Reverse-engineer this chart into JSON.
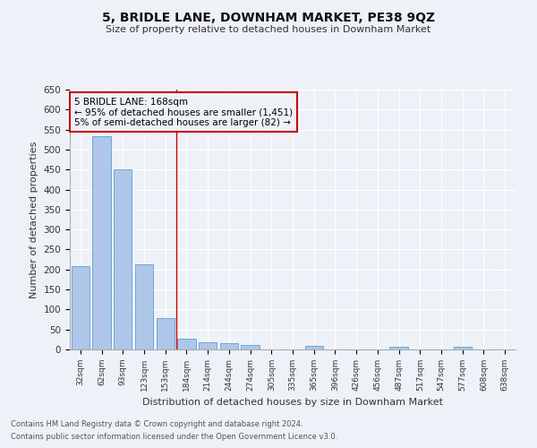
{
  "title1": "5, BRIDLE LANE, DOWNHAM MARKET, PE38 9QZ",
  "title2": "Size of property relative to detached houses in Downham Market",
  "xlabel": "Distribution of detached houses by size in Downham Market",
  "ylabel": "Number of detached properties",
  "categories": [
    "32sqm",
    "62sqm",
    "93sqm",
    "123sqm",
    "153sqm",
    "184sqm",
    "214sqm",
    "244sqm",
    "274sqm",
    "305sqm",
    "335sqm",
    "365sqm",
    "396sqm",
    "426sqm",
    "456sqm",
    "487sqm",
    "517sqm",
    "547sqm",
    "577sqm",
    "608sqm",
    "638sqm"
  ],
  "values": [
    208,
    533,
    450,
    212,
    78,
    26,
    18,
    15,
    12,
    0,
    0,
    8,
    0,
    0,
    0,
    6,
    0,
    0,
    6,
    0,
    0
  ],
  "bar_color": "#aec6e8",
  "bar_edge_color": "#5a9fd4",
  "vline_x_index": 5,
  "vline_color": "#cc0000",
  "annotation_text": "5 BRIDLE LANE: 168sqm\n← 95% of detached houses are smaller (1,451)\n5% of semi-detached houses are larger (82) →",
  "annotation_box_color": "#cc0000",
  "annotation_text_color": "#000000",
  "ylim": [
    0,
    650
  ],
  "yticks": [
    0,
    50,
    100,
    150,
    200,
    250,
    300,
    350,
    400,
    450,
    500,
    550,
    600,
    650
  ],
  "footnote1": "Contains HM Land Registry data © Crown copyright and database right 2024.",
  "footnote2": "Contains public sector information licensed under the Open Government Licence v3.0.",
  "background_color": "#eef2f8",
  "grid_color": "#ffffff"
}
